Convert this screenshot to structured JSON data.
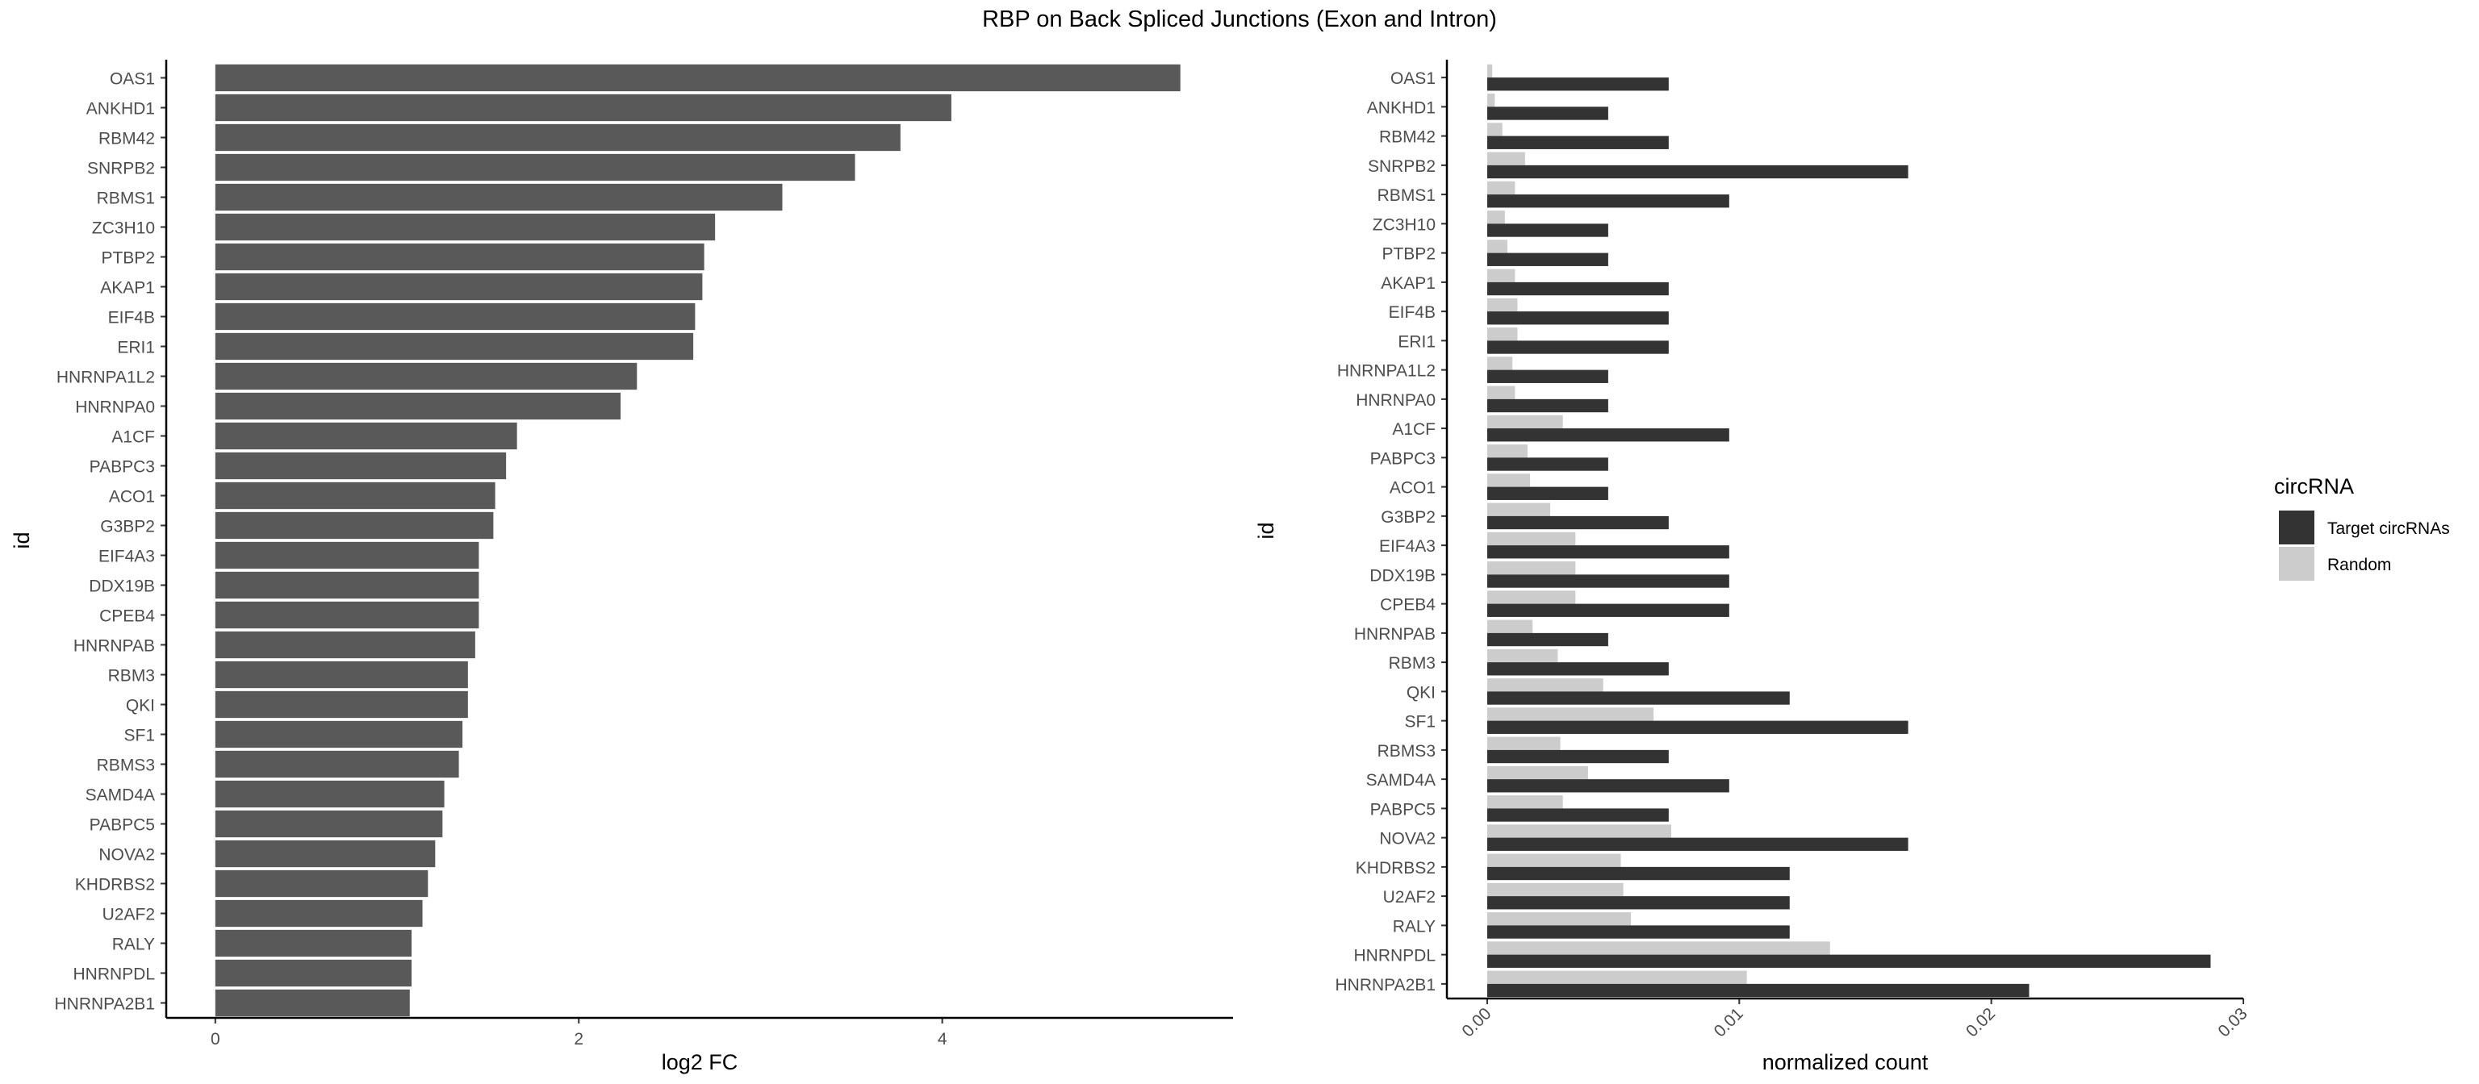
{
  "figure_title": "RBP on Back Spliced Junctions (Exon and Intron)",
  "colors": {
    "bar_fc": "#595959",
    "target": "#333333",
    "random": "#cccccc",
    "axis": "#000000",
    "text": "#4d4d4d"
  },
  "chart_data": [
    {
      "type": "bar",
      "orientation": "horizontal",
      "xlabel": "log2 FC",
      "ylabel": "id",
      "xlim": [
        -0.27,
        5.6
      ],
      "xticks": [
        0,
        2,
        4
      ],
      "grid": false,
      "categories": [
        "OAS1",
        "ANKHD1",
        "RBM42",
        "SNRPB2",
        "RBMS1",
        "ZC3H10",
        "PTBP2",
        "AKAP1",
        "EIF4B",
        "ERI1",
        "HNRNPA1L2",
        "HNRNPA0",
        "A1CF",
        "PABPC3",
        "ACO1",
        "G3BP2",
        "EIF4A3",
        "DDX19B",
        "CPEB4",
        "HNRNPAB",
        "RBM3",
        "QKI",
        "SF1",
        "RBMS3",
        "SAMD4A",
        "PABPC5",
        "NOVA2",
        "KHDRBS2",
        "U2AF2",
        "RALY",
        "HNRNPDL",
        "HNRNPA2B1"
      ],
      "values": [
        5.31,
        4.05,
        3.77,
        3.52,
        3.12,
        2.75,
        2.69,
        2.68,
        2.64,
        2.63,
        2.32,
        2.23,
        1.66,
        1.6,
        1.54,
        1.53,
        1.45,
        1.45,
        1.45,
        1.43,
        1.39,
        1.39,
        1.36,
        1.34,
        1.26,
        1.25,
        1.21,
        1.17,
        1.14,
        1.08,
        1.08,
        1.07
      ]
    },
    {
      "type": "bar",
      "orientation": "horizontal",
      "grouped": true,
      "xlabel": "normalized count",
      "ylabel": "id",
      "xlim": [
        -0.0016,
        0.03
      ],
      "xticks": [
        0.0,
        0.01,
        0.02,
        0.03
      ],
      "xtick_labels": [
        "0.00",
        "0.01",
        "0.02",
        "0.03"
      ],
      "grid": false,
      "legend": {
        "title": "circRNA",
        "position": "right"
      },
      "categories": [
        "OAS1",
        "ANKHD1",
        "RBM42",
        "SNRPB2",
        "RBMS1",
        "ZC3H10",
        "PTBP2",
        "AKAP1",
        "EIF4B",
        "ERI1",
        "HNRNPA1L2",
        "HNRNPA0",
        "A1CF",
        "PABPC3",
        "ACO1",
        "G3BP2",
        "EIF4A3",
        "DDX19B",
        "CPEB4",
        "HNRNPAB",
        "RBM3",
        "QKI",
        "SF1",
        "RBMS3",
        "SAMD4A",
        "PABPC5",
        "NOVA2",
        "KHDRBS2",
        "U2AF2",
        "RALY",
        "HNRNPDL",
        "HNRNPA2B1"
      ],
      "series": [
        {
          "name": "Target circRNAs",
          "color": "#333333",
          "values": [
            0.0072,
            0.0048,
            0.0072,
            0.0167,
            0.0096,
            0.0048,
            0.0048,
            0.0072,
            0.0072,
            0.0072,
            0.0048,
            0.0048,
            0.0096,
            0.0048,
            0.0048,
            0.0072,
            0.0096,
            0.0096,
            0.0096,
            0.0048,
            0.0072,
            0.012,
            0.0167,
            0.0072,
            0.0096,
            0.0072,
            0.0167,
            0.012,
            0.012,
            0.012,
            0.0287,
            0.0215
          ]
        },
        {
          "name": "Random",
          "color": "#cccccc",
          "values": [
            0.0002,
            0.0003,
            0.0006,
            0.0015,
            0.0011,
            0.0007,
            0.0008,
            0.0011,
            0.0012,
            0.0012,
            0.001,
            0.0011,
            0.003,
            0.0016,
            0.0017,
            0.0025,
            0.0035,
            0.0035,
            0.0035,
            0.0018,
            0.0028,
            0.0046,
            0.0066,
            0.0029,
            0.004,
            0.003,
            0.0073,
            0.0053,
            0.0054,
            0.0057,
            0.0136,
            0.0103
          ]
        }
      ]
    }
  ]
}
